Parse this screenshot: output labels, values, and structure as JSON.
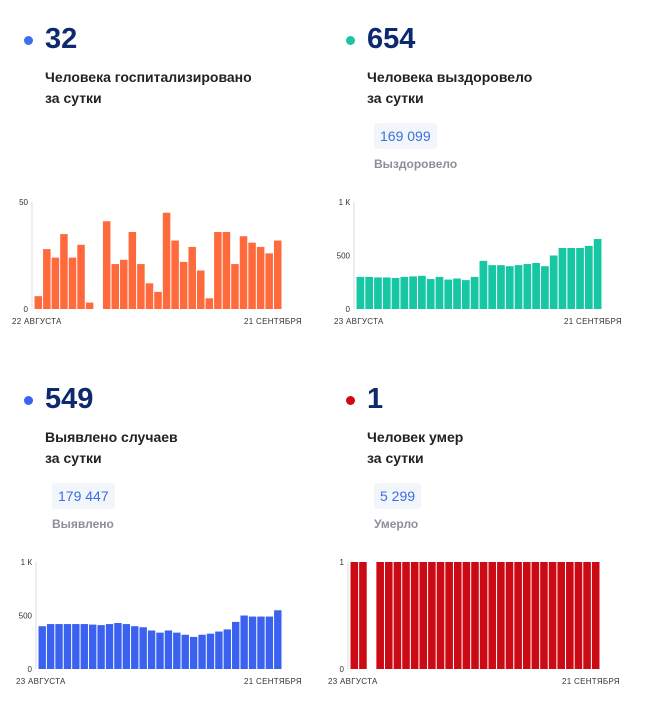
{
  "panels": {
    "hosp": {
      "value": "32",
      "label": "Человека госпитализировано\nза сутки",
      "color": "#ff6a3d",
      "dot_color": "#3b6ff0"
    },
    "recov": {
      "value": "654",
      "label": "Человека выздоровело\nза сутки",
      "total": "169 099",
      "total_label": "Выздоровело",
      "color": "#17c7a3",
      "dot_color": "#17c7a3"
    },
    "cases": {
      "value": "549",
      "label": "Выявлено случаев\nза сутки",
      "total": "179 447",
      "total_label": "Выявлено",
      "color": "#3b61f0",
      "dot_color": "#3b61f0"
    },
    "deaths": {
      "value": "1",
      "label": "Человек умер\nза сутки",
      "total": "5 299",
      "total_label": "Умерло",
      "color": "#cc0a14",
      "dot_color": "#cc0a14"
    }
  },
  "chart_data": [
    {
      "id": "hosp",
      "type": "bar",
      "x_start_label": "22 АВГУСТА",
      "x_end_label": "21 СЕНТЯБРЯ",
      "ytick_labels": [
        "50",
        "0"
      ],
      "ylim": [
        0,
        50
      ],
      "values": [
        6,
        28,
        24,
        35,
        24,
        30,
        3,
        null,
        41,
        21,
        23,
        36,
        21,
        12,
        8,
        45,
        32,
        22,
        29,
        18,
        5,
        36,
        36,
        21,
        34,
        31,
        29,
        26,
        32
      ]
    },
    {
      "id": "recov",
      "type": "bar",
      "x_start_label": "23 АВГУСТА",
      "x_end_label": "21 СЕНТЯБРЯ",
      "ytick_labels": [
        "1 К",
        "500",
        "0"
      ],
      "ylim": [
        0,
        1000
      ],
      "values": [
        300,
        300,
        295,
        295,
        290,
        300,
        305,
        310,
        280,
        300,
        275,
        285,
        270,
        300,
        450,
        410,
        410,
        400,
        410,
        420,
        430,
        400,
        500,
        570,
        570,
        570,
        590,
        654
      ]
    },
    {
      "id": "cases",
      "type": "bar",
      "x_start_label": "23 АВГУСТА",
      "x_end_label": "21 СЕНТЯБРЯ",
      "ytick_labels": [
        "1 К",
        "500",
        "0"
      ],
      "ylim": [
        0,
        1000
      ],
      "values": [
        400,
        420,
        420,
        420,
        420,
        420,
        415,
        410,
        420,
        430,
        420,
        400,
        390,
        360,
        340,
        360,
        340,
        320,
        300,
        320,
        330,
        350,
        370,
        440,
        500,
        490,
        490,
        490,
        549
      ]
    },
    {
      "id": "deaths",
      "type": "bar",
      "x_start_label": "23 АВГУСТА",
      "x_end_label": "21 СЕНТЯБРЯ",
      "ytick_labels": [
        "1",
        "0"
      ],
      "ylim": [
        0,
        1
      ],
      "values": [
        1,
        1,
        null,
        1,
        1,
        1,
        1,
        1,
        1,
        1,
        1,
        1,
        1,
        1,
        1,
        1,
        1,
        1,
        1,
        1,
        1,
        1,
        1,
        1,
        1,
        1,
        1,
        1,
        1
      ]
    }
  ]
}
